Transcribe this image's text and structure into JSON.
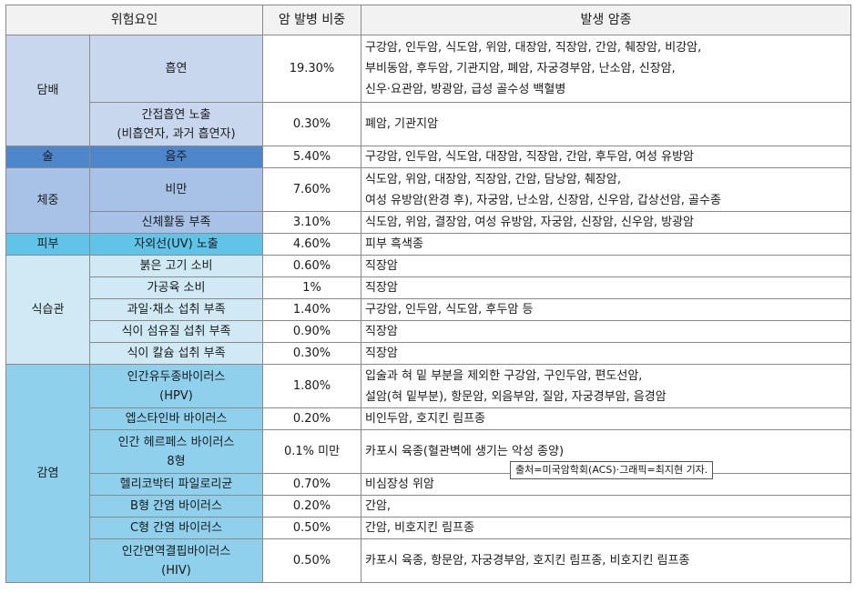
{
  "headers": {
    "risk": "위험요인",
    "ratio": "암 발병 비중",
    "types": "발생 암종"
  },
  "caption": "출처=미국암학회(ACS)·그래픽=최지현 기자.",
  "groups": {
    "smoke": "담배",
    "alcohol": "술",
    "weight": "체중",
    "skin": "피부",
    "diet": "식습관",
    "infect": "감염"
  },
  "rows": [
    {
      "risk": "흡연",
      "ratio": "19.30%",
      "types": [
        "구강암, 인두암, 식도암, 위암, 대장암, 직장암, 간암, 췌장암, 비강암,",
        "부비동암, 후두암, 기관지암, 폐암, 자궁경부암, 난소암, 신장암,",
        "신우·요관암, 방광암, 급성 골수성 백혈병"
      ]
    },
    {
      "risk": [
        "간접흡연 노출",
        "(비흡연자, 과거 흡연자)"
      ],
      "ratio": "0.30%",
      "types": [
        "폐암, 기관지암"
      ]
    },
    {
      "risk": "음주",
      "ratio": "5.40%",
      "types": [
        "구강암, 인두암, 식도암, 대장암, 직장암, 간암, 후두암, 여성 유방암"
      ]
    },
    {
      "risk": "비만",
      "ratio": "7.60%",
      "types": [
        "식도암, 위암, 대장암, 직장암, 간암, 담낭암, 췌장암,",
        "여성 유방암(완경 후), 자궁암, 난소암, 신장암, 신우암, 갑상선암, 골수종"
      ]
    },
    {
      "risk": "신체활동 부족",
      "ratio": "3.10%",
      "types": [
        "식도암, 위암, 결장암, 여성 유방암, 자궁암, 신장암, 신우암, 방광암"
      ]
    },
    {
      "risk": "자외선(UV) 노출",
      "ratio": "4.60%",
      "types": [
        "피부 흑색종"
      ]
    },
    {
      "risk": "붉은 고기 소비",
      "ratio": "0.60%",
      "types": [
        "직장암"
      ]
    },
    {
      "risk": "가공육 소비",
      "ratio": "1%",
      "types": [
        "직장암"
      ]
    },
    {
      "risk": "과일·채소 섭취 부족",
      "ratio": "1.40%",
      "types": [
        "구강암, 인두암, 식도암, 후두암 등"
      ]
    },
    {
      "risk": "식이 섬유질 섭취 부족",
      "ratio": "0.90%",
      "types": [
        "직장암"
      ]
    },
    {
      "risk": "식이 칼슘 섭취 부족",
      "ratio": "0.30%",
      "types": [
        "직장암"
      ]
    },
    {
      "risk": [
        "인간유두종바이러스",
        "(HPV)"
      ],
      "ratio": "1.80%",
      "types": [
        "입술과 혀 밑 부분을 제외한 구강암, 구인두암, 편도선암,",
        "설암(혀 밑부분), 항문암, 외음부암, 질암, 자궁경부암, 음경암"
      ]
    },
    {
      "risk": "엡스타인바 바이러스",
      "ratio": "0.20%",
      "types": [
        "비인두암, 호지킨 림프종"
      ]
    },
    {
      "risk": [
        "인간 헤르페스 바이러스",
        "8형"
      ],
      "ratio": "0.1% 미만",
      "types": [
        "카포시 육종(혈관벽에 생기는 악성 종양)"
      ]
    },
    {
      "risk": "헬리코박터 파일로리균",
      "ratio": "0.70%",
      "types": [
        "비심장성 위암"
      ]
    },
    {
      "risk": "B형 간염 바이러스",
      "ratio": "0.20%",
      "types": [
        "간암,"
      ]
    },
    {
      "risk": "C형 간염 바이러스",
      "ratio": "0.50%",
      "types": [
        "간암, 비호지킨 림프종"
      ]
    },
    {
      "risk": [
        "인간면역결핍바이러스",
        "(HIV)"
      ],
      "ratio": "0.50%",
      "types": [
        "카포시 육종, 항문암, 자궁경부암, 호지킨 림프종, 비호지킨 림프종"
      ]
    }
  ]
}
